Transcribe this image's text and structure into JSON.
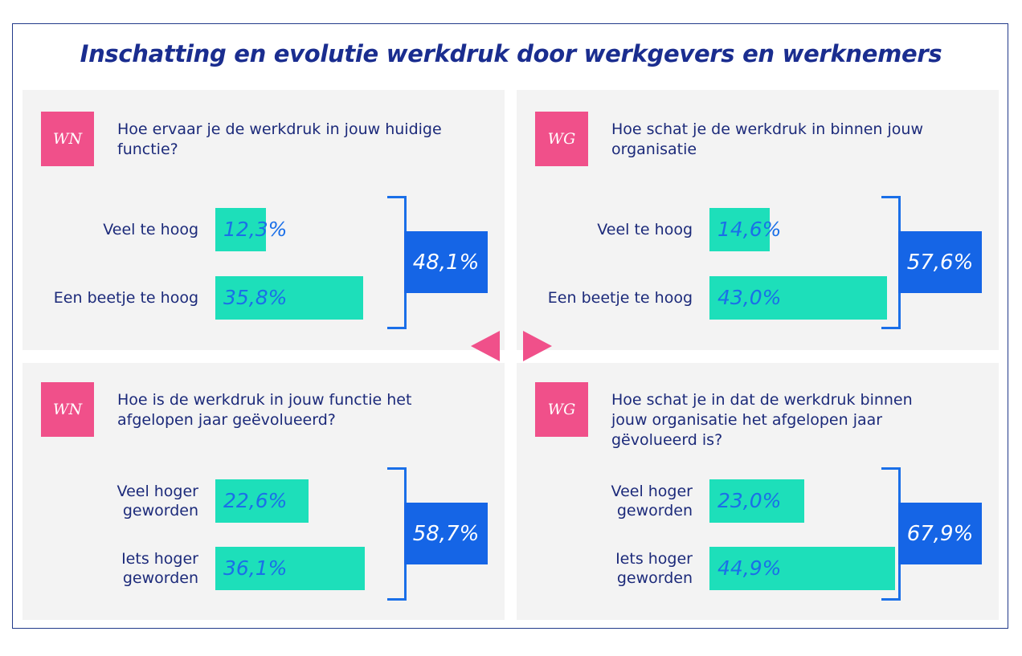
{
  "title": "Inschatting en evolutie werkdruk door werkgevers en werknemers",
  "colors": {
    "badge": "#f0508a",
    "bar": "#1ddfba",
    "accent": "#1565e6",
    "text": "#1c2a7a"
  },
  "panels": [
    {
      "badge": "WN",
      "question_lines": [
        "Hoe ervaar je de werkdruk in jouw huidige",
        "functie?"
      ],
      "rows": [
        {
          "label_lines": [
            "Veel te hoog"
          ],
          "display": "12,3%",
          "value": 12.3
        },
        {
          "label_lines": [
            "Een beetje te hoog"
          ],
          "display": "35,8%",
          "value": 35.8
        }
      ],
      "total": "48,1%"
    },
    {
      "badge": "WG",
      "question_lines": [
        "Hoe schat je de werkdruk in binnen jouw",
        "organisatie"
      ],
      "rows": [
        {
          "label_lines": [
            "Veel te hoog"
          ],
          "display": "14,6%",
          "value": 14.6
        },
        {
          "label_lines": [
            "Een beetje te hoog"
          ],
          "display": "43,0%",
          "value": 43.0
        }
      ],
      "total": "57,6%"
    },
    {
      "badge": "WN",
      "question_lines": [
        "Hoe is de werkdruk in jouw functie het",
        "afgelopen jaar geëvolueerd?"
      ],
      "rows": [
        {
          "label_lines": [
            "Veel hoger",
            "geworden"
          ],
          "display": "22,6%",
          "value": 22.6
        },
        {
          "label_lines": [
            "Iets hoger",
            "geworden"
          ],
          "display": "36,1%",
          "value": 36.1
        }
      ],
      "total": "58,7%"
    },
    {
      "badge": "WG",
      "question_lines": [
        "Hoe schat je in dat de werkdruk binnen",
        "jouw organisatie het afgelopen jaar",
        "gëvolueerd is?"
      ],
      "rows": [
        {
          "label_lines": [
            "Veel hoger",
            "geworden"
          ],
          "display": "23,0%",
          "value": 23.0
        },
        {
          "label_lines": [
            "Iets hoger",
            "geworden"
          ],
          "display": "44,9%",
          "value": 44.9
        }
      ],
      "total": "67,9%"
    }
  ],
  "chart_data": {
    "type": "bar",
    "title": "Inschatting en evolutie werkdruk door werkgevers en werknemers",
    "charts": [
      {
        "group": "WN",
        "question": "Hoe ervaar je de werkdruk in jouw huidige functie?",
        "categories": [
          "Veel te hoog",
          "Een beetje te hoog"
        ],
        "values": [
          12.3,
          35.8
        ],
        "total": 48.1
      },
      {
        "group": "WG",
        "question": "Hoe schat je de werkdruk in binnen jouw organisatie",
        "categories": [
          "Veel te hoog",
          "Een beetje te hoog"
        ],
        "values": [
          14.6,
          43.0
        ],
        "total": 57.6
      },
      {
        "group": "WN",
        "question": "Hoe is de werkdruk in jouw functie het afgelopen jaar geëvolueerd?",
        "categories": [
          "Veel hoger geworden",
          "Iets hoger geworden"
        ],
        "values": [
          22.6,
          36.1
        ],
        "total": 58.7
      },
      {
        "group": "WG",
        "question": "Hoe schat je in dat de werkdruk binnen jouw organisatie het afgelopen jaar gëvolueerd is?",
        "categories": [
          "Veel hoger geworden",
          "Iets hoger geworden"
        ],
        "values": [
          23.0,
          44.9
        ],
        "total": 67.9
      }
    ]
  }
}
